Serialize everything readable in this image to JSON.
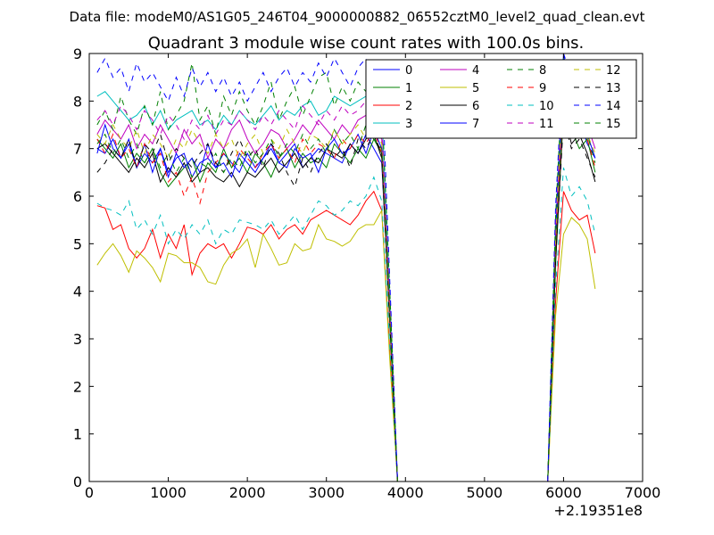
{
  "chart_data": {
    "type": "line",
    "suptitle": "Data file: modeM0/AS1G05_246T04_9000000882_06552cztM0_level2_quad_clean.evt",
    "title": "Quadrant 3 module wise count rates with 100.0s bins.",
    "xlabel": "",
    "ylabel": "",
    "xlim": [
      0,
      7000
    ],
    "ylim": [
      0,
      9
    ],
    "x_offset_label": "+2.19351e8",
    "xticks": [
      "0",
      "1000",
      "2000",
      "3000",
      "4000",
      "5000",
      "6000",
      "7000"
    ],
    "yticks": [
      "0",
      "1",
      "2",
      "3",
      "4",
      "5",
      "6",
      "7",
      "8",
      "9"
    ],
    "legend_position": "top-right",
    "x": [
      100,
      200,
      300,
      400,
      500,
      600,
      700,
      800,
      900,
      1000,
      1100,
      1200,
      1300,
      1400,
      1500,
      1600,
      1700,
      1800,
      1900,
      2000,
      2100,
      2200,
      2300,
      2400,
      2500,
      2600,
      2700,
      2800,
      2900,
      3000,
      3100,
      3200,
      3300,
      3400,
      3500,
      3600,
      3700,
      3800,
      3900,
      4000,
      4100,
      4200,
      4300,
      4400,
      4500,
      4600,
      4700,
      4800,
      4900,
      5000,
      5100,
      5200,
      5300,
      5400,
      5500,
      5600,
      5700,
      5800,
      5900,
      6000,
      6100,
      6200,
      6300,
      6400
    ],
    "series": [
      {
        "name": "0",
        "color": "#0000ff",
        "style": "solid",
        "values": [
          7.0,
          6.9,
          7.2,
          6.8,
          7.1,
          6.6,
          6.9,
          6.7,
          7.0,
          6.5,
          6.8,
          6.9,
          6.4,
          6.7,
          6.8,
          6.6,
          6.9,
          6.7,
          6.5,
          6.9,
          6.6,
          6.8,
          7.0,
          6.7,
          6.9,
          7.1,
          6.6,
          6.8,
          7.0,
          6.9,
          6.8,
          6.7,
          7.1,
          6.9,
          7.3,
          7.0,
          6.7,
          3.5,
          0,
          0,
          0,
          0,
          0,
          0,
          0,
          0,
          0,
          0,
          0,
          0,
          0,
          0,
          0,
          0,
          0,
          0,
          0,
          0,
          4.8,
          8.4,
          7.3,
          7.6,
          7.1,
          6.8
        ]
      },
      {
        "name": "1",
        "color": "#008000",
        "style": "solid",
        "values": [
          7.2,
          7.0,
          6.8,
          7.1,
          6.6,
          6.9,
          6.7,
          7.0,
          6.5,
          6.2,
          6.4,
          6.6,
          6.8,
          6.3,
          6.7,
          6.5,
          7.0,
          6.6,
          6.8,
          6.5,
          6.9,
          6.7,
          6.4,
          6.8,
          7.0,
          6.6,
          6.9,
          6.7,
          6.8,
          6.6,
          7.1,
          6.9,
          6.7,
          7.0,
          6.8,
          7.2,
          6.9,
          3.4,
          0,
          0,
          0,
          0,
          0,
          0,
          0,
          0,
          0,
          0,
          0,
          0,
          0,
          0,
          0,
          0,
          0,
          0,
          0,
          0,
          4.7,
          8.0,
          7.4,
          7.0,
          7.2,
          6.5
        ]
      },
      {
        "name": "2",
        "color": "#ff0000",
        "style": "solid",
        "values": [
          5.8,
          5.75,
          5.3,
          5.4,
          4.9,
          4.7,
          4.9,
          5.3,
          4.7,
          5.2,
          4.9,
          5.4,
          4.35,
          4.8,
          5.0,
          4.9,
          5.0,
          4.7,
          5.0,
          5.35,
          5.3,
          5.2,
          5.4,
          5.1,
          5.3,
          5.4,
          5.2,
          5.5,
          5.6,
          5.7,
          5.6,
          5.5,
          5.4,
          5.6,
          5.9,
          6.1,
          5.7,
          2.8,
          0,
          0,
          0,
          0,
          0,
          0,
          0,
          0,
          0,
          0,
          0,
          0,
          0,
          0,
          0,
          0,
          0,
          0,
          0,
          0,
          3.8,
          6.1,
          5.7,
          5.5,
          5.6,
          4.8
        ]
      },
      {
        "name": "3",
        "color": "#00bfbf",
        "style": "solid",
        "values": [
          8.1,
          8.2,
          8.0,
          7.8,
          7.6,
          7.7,
          7.9,
          7.5,
          7.8,
          7.4,
          7.6,
          7.7,
          7.8,
          7.5,
          7.6,
          7.4,
          7.7,
          7.5,
          7.8,
          7.6,
          7.5,
          7.7,
          7.9,
          7.6,
          7.8,
          7.7,
          7.9,
          8.0,
          7.7,
          7.8,
          8.1,
          8.0,
          7.9,
          8.0,
          8.1,
          8.2,
          7.8,
          3.9,
          0,
          0,
          0,
          0,
          0,
          0,
          0,
          0,
          0,
          0,
          0,
          0,
          0,
          0,
          0,
          0,
          0,
          0,
          0,
          0,
          5.4,
          8.5,
          8.0,
          8.1,
          7.9,
          7.6
        ]
      },
      {
        "name": "4",
        "color": "#bf00bf",
        "style": "solid",
        "values": [
          7.3,
          7.6,
          7.4,
          7.2,
          7.5,
          7.0,
          7.3,
          7.1,
          7.5,
          7.2,
          6.9,
          7.4,
          7.1,
          7.3,
          6.8,
          7.2,
          7.0,
          7.4,
          7.6,
          7.2,
          6.9,
          7.1,
          7.4,
          7.3,
          7.0,
          7.2,
          7.5,
          7.3,
          7.6,
          7.4,
          7.2,
          7.5,
          7.3,
          7.6,
          7.7,
          7.4,
          7.2,
          3.6,
          0,
          0,
          0,
          0,
          0,
          0,
          0,
          0,
          0,
          0,
          0,
          0,
          0,
          0,
          0,
          0,
          0,
          0,
          0,
          0,
          5.0,
          8.1,
          7.6,
          7.8,
          7.5,
          7.0
        ]
      },
      {
        "name": "5",
        "color": "#bfbf00",
        "style": "solid",
        "values": [
          4.55,
          4.8,
          5.0,
          4.75,
          4.4,
          4.85,
          4.7,
          4.5,
          4.2,
          4.8,
          4.75,
          4.6,
          4.6,
          4.5,
          4.2,
          4.15,
          4.55,
          4.8,
          4.9,
          5.1,
          4.5,
          5.2,
          4.9,
          4.55,
          4.6,
          5.0,
          4.85,
          4.9,
          5.4,
          5.1,
          5.05,
          4.95,
          5.05,
          5.3,
          5.4,
          5.4,
          5.7,
          2.6,
          0,
          0,
          0,
          0,
          0,
          0,
          0,
          0,
          0,
          0,
          0,
          0,
          0,
          0,
          0,
          0,
          0,
          0,
          0,
          0,
          3.5,
          5.2,
          5.55,
          5.4,
          5.1,
          4.05
        ]
      },
      {
        "name": "6",
        "color": "#000000",
        "style": "solid",
        "values": [
          7.0,
          7.1,
          6.9,
          6.7,
          6.5,
          6.8,
          6.6,
          6.9,
          6.3,
          6.6,
          6.4,
          6.7,
          6.3,
          6.5,
          6.6,
          6.4,
          6.3,
          6.5,
          6.2,
          6.5,
          6.4,
          6.6,
          6.8,
          6.5,
          6.7,
          6.9,
          6.6,
          6.8,
          6.7,
          7.0,
          6.9,
          6.8,
          7.1,
          6.9,
          7.2,
          7.3,
          6.8,
          3.4,
          0,
          0,
          0,
          0,
          0,
          0,
          0,
          0,
          0,
          0,
          0,
          0,
          0,
          0,
          0,
          0,
          0,
          0,
          0,
          0,
          4.6,
          7.8,
          7.1,
          7.3,
          6.9,
          6.3
        ]
      },
      {
        "name": "7",
        "color": "#0000ff",
        "style": "solid",
        "values": [
          6.9,
          7.5,
          7.0,
          6.8,
          7.2,
          6.6,
          7.1,
          6.5,
          7.0,
          6.4,
          6.9,
          6.6,
          6.8,
          6.5,
          7.1,
          6.6,
          6.7,
          6.4,
          6.9,
          6.7,
          6.5,
          6.8,
          7.1,
          6.7,
          6.6,
          7.0,
          6.8,
          6.9,
          6.5,
          7.0,
          7.2,
          6.9,
          7.0,
          7.3,
          6.9,
          7.4,
          7.0,
          3.5,
          0,
          0,
          0,
          0,
          0,
          0,
          0,
          0,
          0,
          0,
          0,
          0,
          0,
          0,
          0,
          0,
          0,
          0,
          0,
          0,
          5.2,
          9.0,
          7.8,
          7.5,
          7.3,
          6.8
        ]
      },
      {
        "name": "8",
        "color": "#008000",
        "style": "dashed",
        "values": [
          7.5,
          7.8,
          7.4,
          8.1,
          7.6,
          7.3,
          7.9,
          7.5,
          8.2,
          7.4,
          7.7,
          8.0,
          8.8,
          7.6,
          7.9,
          7.3,
          8.1,
          7.7,
          8.2,
          7.8,
          7.5,
          7.9,
          8.4,
          7.6,
          8.0,
          8.3,
          7.7,
          8.1,
          8.5,
          8.6,
          7.9,
          8.3,
          8.0,
          8.4,
          8.2,
          8.6,
          8.0,
          4.1,
          0,
          0,
          0,
          0,
          0,
          0,
          0,
          0,
          0,
          0,
          0,
          0,
          0,
          0,
          0,
          0,
          0,
          0,
          0,
          0,
          5.6,
          8.9,
          8.2,
          8.4,
          8.0,
          7.5
        ]
      },
      {
        "name": "9",
        "color": "#ff0000",
        "style": "dashed",
        "values": [
          7.2,
          6.9,
          7.3,
          6.8,
          7.0,
          6.6,
          7.1,
          6.7,
          6.9,
          6.3,
          6.5,
          6.0,
          6.4,
          5.85,
          6.5,
          6.7,
          6.9,
          6.6,
          7.0,
          6.8,
          6.6,
          6.9,
          7.1,
          6.8,
          7.0,
          6.7,
          7.2,
          6.9,
          7.1,
          7.0,
          6.8,
          7.2,
          7.0,
          7.3,
          7.1,
          7.4,
          6.9,
          3.5,
          0,
          0,
          0,
          0,
          0,
          0,
          0,
          0,
          0,
          0,
          0,
          0,
          0,
          0,
          0,
          0,
          0,
          0,
          0,
          0,
          4.9,
          7.9,
          7.3,
          7.5,
          7.2,
          6.6
        ]
      },
      {
        "name": "10",
        "color": "#00bfbf",
        "style": "dashed",
        "values": [
          5.85,
          5.75,
          5.7,
          5.6,
          5.9,
          5.3,
          5.5,
          5.2,
          5.6,
          5.0,
          5.3,
          5.1,
          5.4,
          5.2,
          5.5,
          5.0,
          5.3,
          5.2,
          5.5,
          5.45,
          5.4,
          5.3,
          5.5,
          5.2,
          5.4,
          5.6,
          5.3,
          5.6,
          5.9,
          5.8,
          5.6,
          5.7,
          5.9,
          5.8,
          6.0,
          6.4,
          5.9,
          2.9,
          0,
          0,
          0,
          0,
          0,
          0,
          0,
          0,
          0,
          0,
          0,
          0,
          0,
          0,
          0,
          0,
          0,
          0,
          0,
          0,
          4.1,
          6.6,
          6.0,
          6.2,
          5.9,
          5.2
        ]
      },
      {
        "name": "11",
        "color": "#bf00bf",
        "style": "dashed",
        "values": [
          7.6,
          7.8,
          7.5,
          7.9,
          7.7,
          7.4,
          7.8,
          7.6,
          7.3,
          7.7,
          7.5,
          7.2,
          7.6,
          7.4,
          7.7,
          7.3,
          7.6,
          7.5,
          7.8,
          7.6,
          7.4,
          7.7,
          7.5,
          7.8,
          7.6,
          7.4,
          7.9,
          7.7,
          7.5,
          7.8,
          7.6,
          7.9,
          7.7,
          7.8,
          8.0,
          7.9,
          7.6,
          3.8,
          0,
          0,
          0,
          0,
          0,
          0,
          0,
          0,
          0,
          0,
          0,
          0,
          0,
          0,
          0,
          0,
          0,
          0,
          0,
          0,
          5.3,
          8.6,
          7.9,
          8.1,
          7.8,
          7.3
        ]
      },
      {
        "name": "12",
        "color": "#bfbf00",
        "style": "dashed",
        "values": [
          7.3,
          7.1,
          7.5,
          7.2,
          7.0,
          7.4,
          6.9,
          7.3,
          7.1,
          6.8,
          7.2,
          7.0,
          7.4,
          7.1,
          6.9,
          7.3,
          7.0,
          7.2,
          6.8,
          7.1,
          7.3,
          6.9,
          7.2,
          7.0,
          7.4,
          7.1,
          6.9,
          7.3,
          7.2,
          7.0,
          7.4,
          7.1,
          7.3,
          7.5,
          7.2,
          7.6,
          7.1,
          3.6,
          0,
          0,
          0,
          0,
          0,
          0,
          0,
          0,
          0,
          0,
          0,
          0,
          0,
          0,
          0,
          0,
          0,
          0,
          0,
          0,
          5.0,
          8.8,
          7.4,
          7.7,
          7.3,
          6.9
        ]
      },
      {
        "name": "13",
        "color": "#000000",
        "style": "dashed",
        "values": [
          6.5,
          6.7,
          7.0,
          6.8,
          7.2,
          6.6,
          7.1,
          6.9,
          7.3,
          6.7,
          7.0,
          6.8,
          6.6,
          6.9,
          7.1,
          6.7,
          6.5,
          6.9,
          7.2,
          6.8,
          7.0,
          6.6,
          7.1,
          6.9,
          6.5,
          6.2,
          6.8,
          6.5,
          6.9,
          7.1,
          6.8,
          7.0,
          6.6,
          7.2,
          7.0,
          7.3,
          6.9,
          3.4,
          0,
          0,
          0,
          0,
          0,
          0,
          0,
          0,
          0,
          0,
          0,
          0,
          0,
          0,
          0,
          0,
          0,
          0,
          0,
          0,
          4.7,
          7.6,
          7.0,
          7.2,
          6.8,
          6.4
        ]
      },
      {
        "name": "14",
        "color": "#0000ff",
        "style": "dashed",
        "values": [
          8.6,
          8.9,
          8.5,
          8.7,
          8.2,
          8.8,
          8.4,
          8.6,
          8.3,
          8.0,
          8.5,
          8.1,
          8.7,
          8.3,
          8.6,
          8.2,
          8.5,
          8.1,
          8.4,
          8.0,
          8.3,
          8.6,
          8.2,
          8.5,
          8.7,
          8.3,
          8.6,
          8.4,
          8.8,
          8.5,
          8.9,
          8.6,
          8.3,
          8.7,
          8.9,
          8.5,
          8.6,
          4.3,
          0,
          0,
          0,
          0,
          0,
          0,
          0,
          0,
          0,
          0,
          0,
          0,
          0,
          0,
          0,
          0,
          0,
          0,
          0,
          0,
          5.8,
          9.0,
          8.5,
          8.7,
          8.4,
          7.9
        ]
      },
      {
        "name": "15",
        "color": "#008000",
        "style": "dashed",
        "values": [
          7.1,
          7.3,
          6.9,
          7.2,
          6.8,
          7.1,
          6.7,
          7.0,
          6.6,
          6.9,
          6.5,
          6.8,
          6.4,
          6.7,
          6.6,
          6.9,
          6.5,
          6.8,
          6.6,
          7.0,
          6.7,
          6.9,
          7.2,
          6.8,
          7.1,
          6.9,
          7.3,
          7.0,
          7.2,
          6.9,
          7.4,
          7.1,
          7.3,
          7.0,
          7.5,
          7.2,
          7.0,
          3.5,
          0,
          0,
          0,
          0,
          0,
          0,
          0,
          0,
          0,
          0,
          0,
          0,
          0,
          0,
          0,
          0,
          0,
          0,
          0,
          0,
          4.9,
          8.0,
          7.4,
          7.6,
          7.3,
          6.7
        ]
      }
    ]
  }
}
